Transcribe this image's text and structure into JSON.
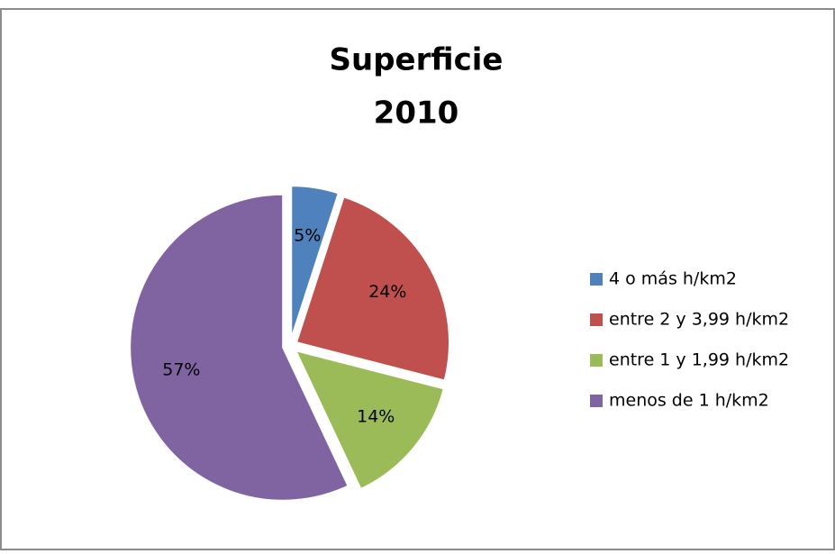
{
  "chart_data": {
    "type": "pie",
    "title": [
      "Superficie",
      "2010"
    ],
    "categories": [
      "4 o más h/km2",
      "entre 2 y 3,99 h/km2",
      "entre 1 y 1,99 h/km2",
      "menos de 1 h/km2"
    ],
    "values": [
      5,
      24,
      14,
      57
    ],
    "value_labels": [
      "5%",
      "24%",
      "14%",
      "57%"
    ],
    "colors": [
      "#4f81bd",
      "#c0504d",
      "#9bbb59",
      "#8064a2"
    ],
    "legend": "right"
  }
}
